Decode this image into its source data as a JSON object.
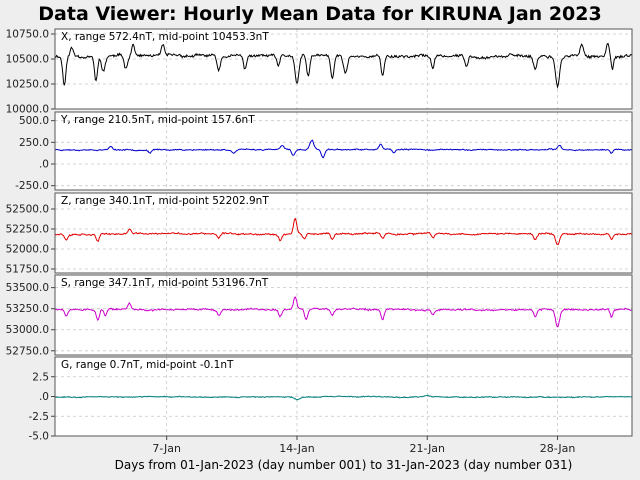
{
  "title": "Data Viewer:  Hourly Mean Data for KIRUNA Jan 2023",
  "x_axis_label": "Days from 01-Jan-2023 (day number 001) to 31-Jan-2023 (day number 031)",
  "chart_data": {
    "type": "line",
    "x_axis": {
      "start": "2023-01-01",
      "end": "2023-01-31",
      "resolution": "hourly",
      "ticks": [
        {
          "label": "7-Jan",
          "day": 7
        },
        {
          "label": "14-Jan",
          "day": 14
        },
        {
          "label": "21-Jan",
          "day": 21
        },
        {
          "label": "28-Jan",
          "day": 28
        }
      ]
    },
    "grid": true,
    "panels": [
      {
        "name": "X",
        "label": "X, range 572.4nT, mid-point 10453.3nT",
        "color": "#000000",
        "ylim": [
          10000,
          10800
        ],
        "yticks": [
          "10000.0",
          "10250.0",
          "10500.0",
          "10750.0"
        ],
        "ytick_values": [
          10000,
          10250,
          10500,
          10750
        ],
        "base": 10530,
        "noise": 20,
        "seed": 11,
        "events": [
          {
            "day": 1.5,
            "amp": -280,
            "w": 0.12
          },
          {
            "day": 1.9,
            "amp": 80,
            "w": 0.12
          },
          {
            "day": 3.2,
            "amp": -250,
            "w": 0.12
          },
          {
            "day": 3.6,
            "amp": -150,
            "w": 0.15
          },
          {
            "day": 4.8,
            "amp": -120,
            "w": 0.12
          },
          {
            "day": 5.2,
            "amp": 120,
            "w": 0.12
          },
          {
            "day": 6.8,
            "amp": 100,
            "w": 0.1
          },
          {
            "day": 9.8,
            "amp": -150,
            "w": 0.12
          },
          {
            "day": 11.2,
            "amp": -130,
            "w": 0.12
          },
          {
            "day": 13.0,
            "amp": -110,
            "w": 0.12
          },
          {
            "day": 14.0,
            "amp": -280,
            "w": 0.15
          },
          {
            "day": 14.6,
            "amp": -200,
            "w": 0.12
          },
          {
            "day": 15.9,
            "amp": -240,
            "w": 0.12
          },
          {
            "day": 16.6,
            "amp": -170,
            "w": 0.15
          },
          {
            "day": 18.6,
            "amp": -190,
            "w": 0.12
          },
          {
            "day": 21.3,
            "amp": -120,
            "w": 0.12
          },
          {
            "day": 23.1,
            "amp": -110,
            "w": 0.12
          },
          {
            "day": 26.8,
            "amp": -130,
            "w": 0.12
          },
          {
            "day": 28.0,
            "amp": -300,
            "w": 0.15
          },
          {
            "day": 29.3,
            "amp": 100,
            "w": 0.12
          },
          {
            "day": 30.7,
            "amp": 130,
            "w": 0.1
          },
          {
            "day": 30.95,
            "amp": -130,
            "w": 0.08
          }
        ]
      },
      {
        "name": "Y",
        "label": "Y, range 210.5nT, mid-point 157.6nT",
        "color": "#0000cc",
        "ylim": [
          -300,
          600
        ],
        "yticks": [
          "-250.0",
          ".0",
          "250.0",
          "500.0"
        ],
        "ytick_values": [
          -250,
          0,
          250,
          500
        ],
        "base": 165,
        "noise": 9,
        "seed": 23,
        "events": [
          {
            "day": 4.0,
            "amp": 40,
            "w": 0.12
          },
          {
            "day": 6.1,
            "amp": -40,
            "w": 0.12
          },
          {
            "day": 10.6,
            "amp": -40,
            "w": 0.12
          },
          {
            "day": 13.2,
            "amp": 50,
            "w": 0.12
          },
          {
            "day": 13.8,
            "amp": -70,
            "w": 0.12
          },
          {
            "day": 14.8,
            "amp": 110,
            "w": 0.15
          },
          {
            "day": 15.4,
            "amp": -90,
            "w": 0.12
          },
          {
            "day": 18.5,
            "amp": 60,
            "w": 0.12
          },
          {
            "day": 19.2,
            "amp": -40,
            "w": 0.12
          },
          {
            "day": 28.1,
            "amp": 50,
            "w": 0.12
          },
          {
            "day": 30.9,
            "amp": -40,
            "w": 0.1
          }
        ]
      },
      {
        "name": "Z",
        "label": "Z, range 340.1nT, mid-point 52202.9nT",
        "color": "#e00000",
        "ylim": [
          51700,
          52700
        ],
        "yticks": [
          "51750.0",
          "52000.0",
          "52250.0",
          "52500.0"
        ],
        "ytick_values": [
          51750,
          52000,
          52250,
          52500
        ],
        "base": 52190,
        "noise": 14,
        "seed": 37,
        "events": [
          {
            "day": 1.6,
            "amp": -70,
            "w": 0.12
          },
          {
            "day": 3.3,
            "amp": -100,
            "w": 0.12
          },
          {
            "day": 5.0,
            "amp": 60,
            "w": 0.12
          },
          {
            "day": 9.8,
            "amp": -60,
            "w": 0.12
          },
          {
            "day": 13.1,
            "amp": -80,
            "w": 0.12
          },
          {
            "day": 13.9,
            "amp": 190,
            "w": 0.12
          },
          {
            "day": 14.4,
            "amp": -70,
            "w": 0.12
          },
          {
            "day": 15.9,
            "amp": -80,
            "w": 0.12
          },
          {
            "day": 18.6,
            "amp": -60,
            "w": 0.12
          },
          {
            "day": 21.3,
            "amp": -50,
            "w": 0.12
          },
          {
            "day": 26.8,
            "amp": -70,
            "w": 0.12
          },
          {
            "day": 28.0,
            "amp": -140,
            "w": 0.15
          },
          {
            "day": 30.9,
            "amp": -70,
            "w": 0.1
          }
        ]
      },
      {
        "name": "S",
        "label": "S, range 347.1nT, mid-point 53196.7nT",
        "color": "#cc00cc",
        "ylim": [
          52700,
          53650
        ],
        "yticks": [
          "52750.0",
          "53000.0",
          "53250.0",
          "53500.0"
        ],
        "ytick_values": [
          52750,
          53000,
          53250,
          53500
        ],
        "base": 53240,
        "noise": 14,
        "seed": 51,
        "events": [
          {
            "day": 1.6,
            "amp": -90,
            "w": 0.12
          },
          {
            "day": 3.3,
            "amp": -130,
            "w": 0.12
          },
          {
            "day": 3.7,
            "amp": -80,
            "w": 0.12
          },
          {
            "day": 5.0,
            "amp": 70,
            "w": 0.12
          },
          {
            "day": 9.8,
            "amp": -70,
            "w": 0.12
          },
          {
            "day": 13.1,
            "amp": -80,
            "w": 0.12
          },
          {
            "day": 13.9,
            "amp": 150,
            "w": 0.12
          },
          {
            "day": 14.5,
            "amp": -120,
            "w": 0.12
          },
          {
            "day": 15.9,
            "amp": -80,
            "w": 0.12
          },
          {
            "day": 18.6,
            "amp": -120,
            "w": 0.12
          },
          {
            "day": 21.3,
            "amp": -60,
            "w": 0.12
          },
          {
            "day": 26.8,
            "amp": -80,
            "w": 0.12
          },
          {
            "day": 28.0,
            "amp": -200,
            "w": 0.15
          },
          {
            "day": 30.9,
            "amp": -90,
            "w": 0.1
          }
        ]
      },
      {
        "name": "G",
        "label": "G, range 0.7nT, mid-point -0.1nT",
        "color": "#008080",
        "ylim": [
          -5,
          5
        ],
        "yticks": [
          "-5.0",
          "-2.5",
          ".0",
          "2.5"
        ],
        "ytick_values": [
          -5,
          -2.5,
          0,
          2.5
        ],
        "base": -0.05,
        "noise": 0.08,
        "seed": 67,
        "events": [
          {
            "day": 14.0,
            "amp": -0.3,
            "w": 0.2
          },
          {
            "day": 21.0,
            "amp": 0.2,
            "w": 0.2
          }
        ]
      }
    ]
  }
}
